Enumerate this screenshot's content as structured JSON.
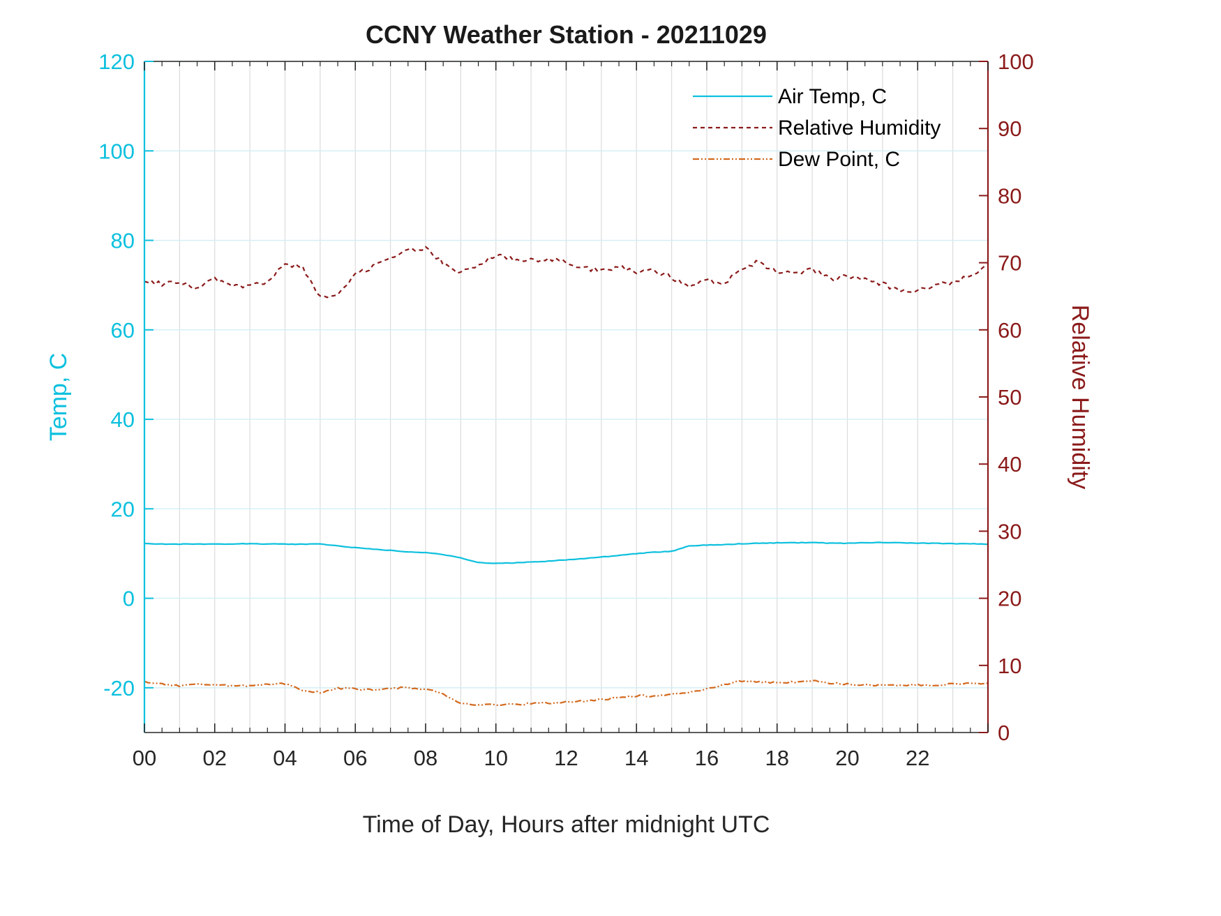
{
  "chart_data": {
    "type": "line",
    "title": "CCNY Weather Station - 20211029",
    "xlabel": "Time of Day, Hours after midnight UTC",
    "ylabel_left": "Temp, C",
    "ylabel_right": "Relative Humidity",
    "xlim": [
      0,
      24
    ],
    "ylim_left": [
      -30,
      120
    ],
    "ylim_right": [
      0,
      100
    ],
    "xticks_major_values": [
      0,
      2,
      4,
      6,
      8,
      10,
      12,
      14,
      16,
      18,
      20,
      22
    ],
    "xticks_major_labels": [
      "00",
      "02",
      "04",
      "06",
      "08",
      "10",
      "12",
      "14",
      "16",
      "18",
      "20",
      "22"
    ],
    "xticks_minor_step": 0.5,
    "x_grid_step": 1,
    "yticks_left": [
      -20,
      0,
      20,
      40,
      60,
      80,
      100,
      120
    ],
    "yticks_right": [
      0,
      10,
      20,
      30,
      40,
      50,
      60,
      70,
      80,
      90,
      100
    ],
    "grid": true,
    "colors": {
      "left_axis": "#0cc0de",
      "right_axis": "#8b1a1a",
      "dew": "#d2691e",
      "x_axis": "#262626",
      "grid_vertical": "#dcdcdc",
      "grid_horizontal": "#d2eff6",
      "legend_text": "#000000",
      "title_text": "#1a1a1a"
    },
    "x_start": 0,
    "x_step": 0.5,
    "series": [
      {
        "name": "Air Temp, C",
        "axis": "left",
        "style": "solid",
        "color_key": "left_axis",
        "noise": 0.06,
        "values": [
          12.2,
          12.15,
          12.1,
          12.1,
          12.1,
          12.15,
          12.2,
          12.15,
          12.1,
          12.1,
          12.15,
          11.7,
          11.3,
          11.0,
          10.7,
          10.4,
          10.2,
          9.8,
          9.0,
          8.0,
          7.8,
          7.9,
          8.1,
          8.3,
          8.6,
          8.9,
          9.2,
          9.6,
          10.0,
          10.3,
          10.5,
          11.7,
          11.9,
          12.0,
          12.2,
          12.3,
          12.4,
          12.4,
          12.5,
          12.3,
          12.3,
          12.4,
          12.5,
          12.4,
          12.3,
          12.3,
          12.2,
          12.2,
          12.1
        ]
      },
      {
        "name": "Relative Humidity",
        "axis": "right",
        "style": "dashed",
        "color_key": "right_axis",
        "noise": 0.35,
        "values": [
          67.5,
          66.8,
          67.0,
          66.2,
          67.6,
          66.8,
          66.5,
          67.3,
          69.8,
          69.3,
          64.8,
          65.3,
          68.3,
          69.4,
          70.6,
          71.8,
          72.3,
          70.0,
          68.4,
          69.8,
          71.2,
          70.6,
          70.4,
          70.6,
          70.0,
          69.2,
          68.8,
          69.3,
          68.6,
          68.9,
          67.9,
          66.3,
          67.4,
          66.8,
          69.3,
          70.2,
          68.4,
          68.6,
          68.9,
          67.6,
          68.0,
          67.4,
          66.9,
          65.6,
          66.0,
          66.6,
          67.1,
          68.0,
          69.8
        ]
      },
      {
        "name": "Dew Point, C",
        "axis": "right",
        "style": "dashdot",
        "color_key": "dew",
        "noise": 0.14,
        "values": [
          7.6,
          7.2,
          6.9,
          7.3,
          7.1,
          6.9,
          7.0,
          7.2,
          7.3,
          6.2,
          6.0,
          6.6,
          6.5,
          6.4,
          6.6,
          6.7,
          6.5,
          5.8,
          4.3,
          4.1,
          4.1,
          4.2,
          4.3,
          4.4,
          4.5,
          4.7,
          4.9,
          5.2,
          5.5,
          5.4,
          5.7,
          6.0,
          6.5,
          7.2,
          7.7,
          7.5,
          7.4,
          7.5,
          7.7,
          7.4,
          7.2,
          7.1,
          7.0,
          7.0,
          7.1,
          7.1,
          7.2,
          7.3,
          7.4
        ]
      }
    ],
    "legend": {
      "position": "top-right",
      "entries": [
        "Air Temp, C",
        "Relative Humidity",
        "Dew Point, C"
      ]
    }
  }
}
